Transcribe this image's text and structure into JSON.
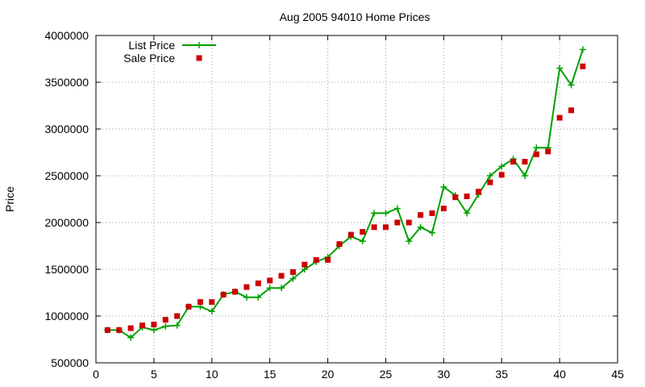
{
  "chart_data": {
    "type": "line",
    "title": "Aug 2005 94010 Home Prices",
    "xlabel": "",
    "ylabel": "Price",
    "xlim": [
      0,
      45
    ],
    "ylim": [
      500000,
      4000000
    ],
    "xticks": [
      0,
      5,
      10,
      15,
      20,
      25,
      30,
      35,
      40,
      45
    ],
    "yticks": [
      500000,
      1000000,
      1500000,
      2000000,
      2500000,
      3000000,
      3500000,
      4000000
    ],
    "grid": true,
    "legend": "top-left",
    "series": [
      {
        "name": "List Price",
        "style": "line+cross",
        "color": "#00a000",
        "x": [
          1,
          2,
          3,
          4,
          5,
          6,
          7,
          8,
          9,
          10,
          11,
          12,
          13,
          14,
          15,
          16,
          17,
          18,
          19,
          20,
          21,
          22,
          23,
          24,
          25,
          26,
          27,
          28,
          29,
          30,
          31,
          32,
          33,
          34,
          35,
          36,
          37,
          38,
          39,
          40,
          41,
          42
        ],
        "y": [
          850000,
          850000,
          770000,
          880000,
          850000,
          890000,
          900000,
          1100000,
          1100000,
          1050000,
          1230000,
          1260000,
          1200000,
          1200000,
          1300000,
          1300000,
          1400000,
          1500000,
          1580000,
          1630000,
          1750000,
          1850000,
          1800000,
          2100000,
          2100000,
          2150000,
          1800000,
          1950000,
          1890000,
          2380000,
          2290000,
          2100000,
          2300000,
          2500000,
          2600000,
          2680000,
          2500000,
          2800000,
          2800000,
          3650000,
          3470000,
          3850000
        ]
      },
      {
        "name": "Sale Price",
        "style": "square",
        "color": "#cc0000",
        "x": [
          1,
          2,
          3,
          4,
          5,
          6,
          7,
          8,
          9,
          10,
          11,
          12,
          13,
          14,
          15,
          16,
          17,
          18,
          19,
          20,
          21,
          22,
          23,
          24,
          25,
          26,
          27,
          28,
          29,
          30,
          31,
          32,
          33,
          34,
          35,
          36,
          37,
          38,
          39,
          40,
          41,
          42
        ],
        "y": [
          850000,
          850000,
          870000,
          900000,
          910000,
          960000,
          1000000,
          1100000,
          1150000,
          1150000,
          1230000,
          1260000,
          1310000,
          1350000,
          1380000,
          1430000,
          1470000,
          1550000,
          1600000,
          1600000,
          1770000,
          1870000,
          1900000,
          1950000,
          1950000,
          2000000,
          2000000,
          2080000,
          2100000,
          2150000,
          2270000,
          2280000,
          2330000,
          2430000,
          2510000,
          2650000,
          2650000,
          2730000,
          2760000,
          3120000,
          3200000,
          3670000
        ]
      }
    ]
  }
}
